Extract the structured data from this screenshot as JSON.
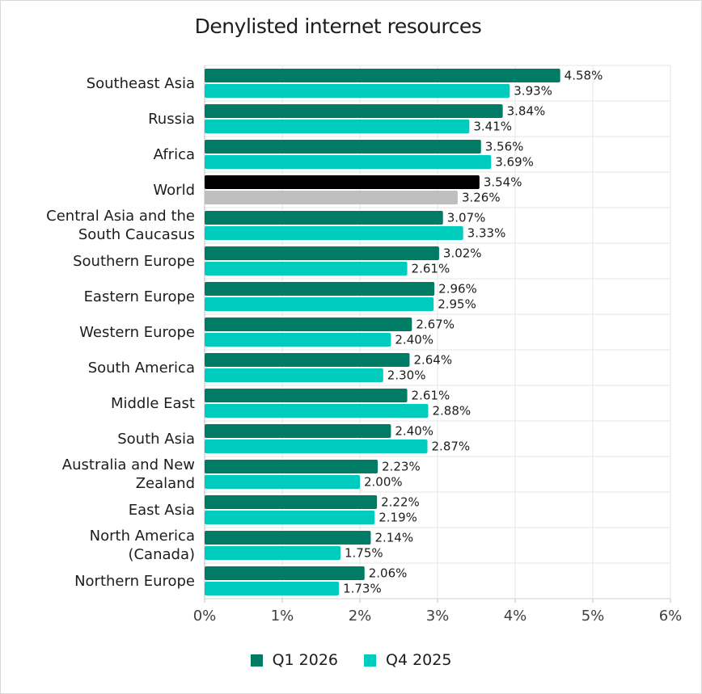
{
  "chart_data": {
    "type": "bar",
    "orientation": "horizontal",
    "title": "Denylisted internet resources",
    "categories": [
      "Southeast Asia",
      "Russia",
      "Africa",
      "World",
      "Central Asia and the South Caucasus",
      "Southern Europe",
      "Eastern Europe",
      "Western Europe",
      "South America",
      "Middle East",
      "South Asia",
      "Australia and New Zealand",
      "East Asia",
      "North America (Canada)",
      "Northern Europe"
    ],
    "category_lines": [
      [
        "Southeast Asia"
      ],
      [
        "Russia"
      ],
      [
        "Africa"
      ],
      [
        "World"
      ],
      [
        "Central Asia and the",
        "South Caucasus"
      ],
      [
        "Southern Europe"
      ],
      [
        "Eastern Europe"
      ],
      [
        "Western Europe"
      ],
      [
        "South America"
      ],
      [
        "Middle East"
      ],
      [
        "South Asia"
      ],
      [
        "Australia and New",
        "Zealand"
      ],
      [
        "East Asia"
      ],
      [
        "North America",
        "(Canada)"
      ],
      [
        "Northern Europe"
      ]
    ],
    "series": [
      {
        "name": "Q1 2026",
        "color": "#007c66",
        "values": [
          4.58,
          3.84,
          3.56,
          3.54,
          3.07,
          3.02,
          2.96,
          2.67,
          2.64,
          2.61,
          2.4,
          2.23,
          2.22,
          2.14,
          2.06
        ],
        "labels": [
          "4.58%",
          "3.84%",
          "3.56%",
          "3.54%",
          "3.07%",
          "3.02%",
          "2.96%",
          "2.67%",
          "2.64%",
          "2.61%",
          "2.40%",
          "2.23%",
          "2.22%",
          "2.14%",
          "2.06%"
        ]
      },
      {
        "name": "Q4 2025",
        "color": "#00ccbe",
        "values": [
          3.93,
          3.41,
          3.69,
          3.26,
          3.33,
          2.61,
          2.95,
          2.4,
          2.3,
          2.88,
          2.87,
          2.0,
          2.19,
          1.75,
          1.73
        ],
        "labels": [
          "3.93%",
          "3.41%",
          "3.69%",
          "3.26%",
          "3.33%",
          "2.61%",
          "2.95%",
          "2.40%",
          "2.30%",
          "2.88%",
          "2.87%",
          "2.00%",
          "2.19%",
          "1.75%",
          "1.73%"
        ]
      }
    ],
    "highlight": {
      "category": "World",
      "colors": [
        "#000000",
        "#bfbfbf"
      ]
    },
    "xlim": [
      0,
      6
    ],
    "xticks": [
      "0%",
      "1%",
      "2%",
      "3%",
      "4%",
      "5%",
      "6%"
    ],
    "grid": true,
    "legend_position": "bottom"
  }
}
